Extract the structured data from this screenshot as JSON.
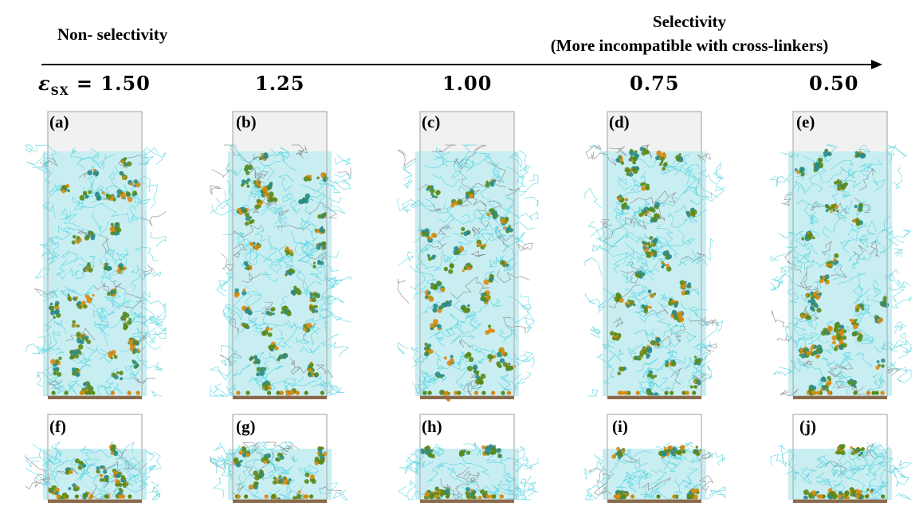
{
  "header": {
    "non_selectivity": "Non- selectivity",
    "selectivity_line1": "Selectivity",
    "selectivity_line2": "(More incompatible with cross-linkers)"
  },
  "epsilon": {
    "symbol": "ε",
    "subscript": "SX",
    "equals": " = ",
    "values": [
      "1.50",
      "1.25",
      "1.00",
      "0.75",
      "0.50"
    ]
  },
  "panels_top": [
    "(a)",
    "(b)",
    "(c)",
    "(d)",
    "(e)"
  ],
  "panels_bottom": [
    "(f)",
    "(g)",
    "(h)",
    "(i)",
    "(j)"
  ],
  "colors": {
    "polymer": "#3fd0dc",
    "polymer_dark": "#2a8c8a",
    "crosslinker_green": "#5a8a1a",
    "crosslinker_orange": "#d88a10",
    "substrate": "#8a6a4a",
    "box": "#b4b4b4"
  }
}
